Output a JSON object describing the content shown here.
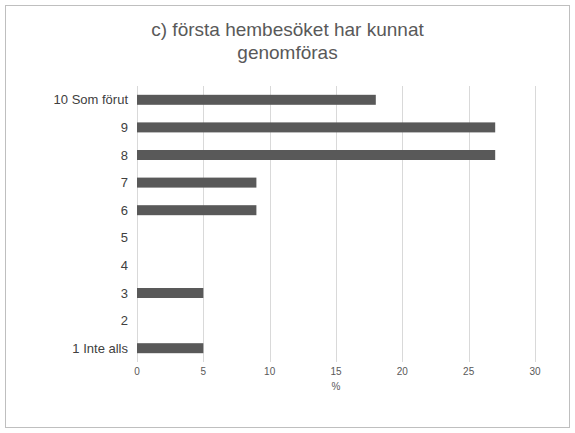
{
  "chart_data": {
    "type": "bar",
    "orientation": "horizontal",
    "title": "c) första hembesöket har kunnat genomföras",
    "xlabel": "%",
    "categories": [
      "10 Som förut",
      "9",
      "8",
      "7",
      "6",
      "5",
      "4",
      "3",
      "2",
      "1 Inte alls"
    ],
    "values": [
      18,
      27,
      27,
      9,
      9,
      0,
      0,
      5,
      0,
      5
    ],
    "color": "#595959",
    "xlim": [
      0,
      30
    ],
    "xticks": [
      0,
      5,
      10,
      15,
      20,
      25,
      30
    ],
    "grid": true
  }
}
